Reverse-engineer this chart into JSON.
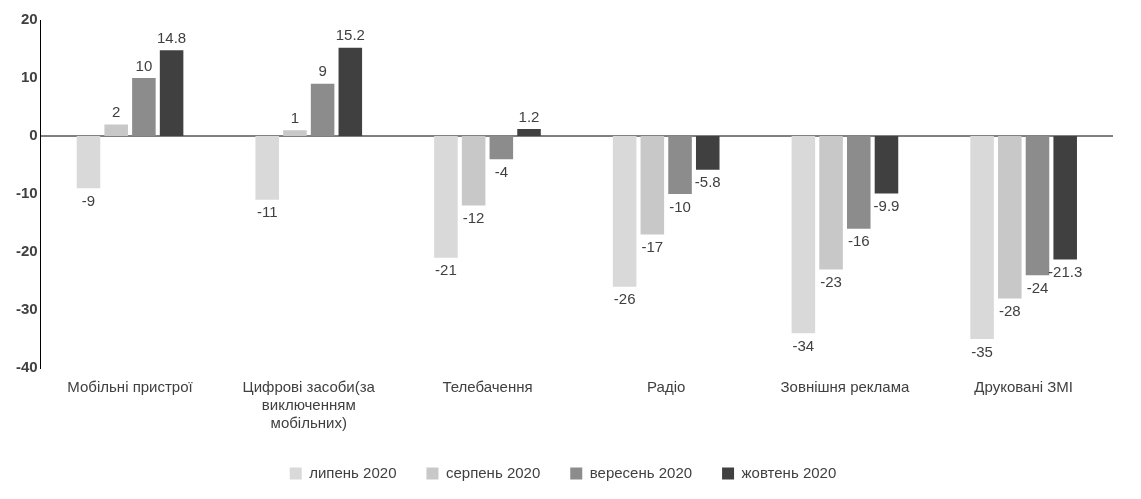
{
  "chart_data": {
    "type": "bar",
    "categories": [
      "Мобільні пристрої",
      "Цифрові засоби(за виключенням мобільних)",
      "Телебачення",
      "Радіо",
      "Зовнішня реклама",
      "Друковані ЗМІ"
    ],
    "series": [
      {
        "name": "липень 2020",
        "color": "#d9d9d9",
        "values": [
          -9,
          -11,
          -21,
          -26,
          -34,
          -35
        ]
      },
      {
        "name": "серпень 2020",
        "color": "#c8c8c8",
        "values": [
          2,
          1,
          -12,
          -17,
          -23,
          -28
        ]
      },
      {
        "name": "вересень 2020",
        "color": "#8c8c8c",
        "values": [
          10,
          9,
          -4,
          -10,
          -16,
          -24
        ]
      },
      {
        "name": "жовтень 2020",
        "color": "#404040",
        "values": [
          14.8,
          15.2,
          1.2,
          -5.8,
          -9.9,
          -21.3
        ]
      }
    ],
    "ylim": [
      -40,
      20
    ],
    "yticks": [
      -40,
      -30,
      -20,
      -10,
      0,
      10,
      20
    ],
    "grid": false,
    "ref_lines": [
      {
        "axis": "y",
        "value": 0,
        "color": "#000000"
      }
    ],
    "legend": "bottom",
    "data_labels": true
  }
}
